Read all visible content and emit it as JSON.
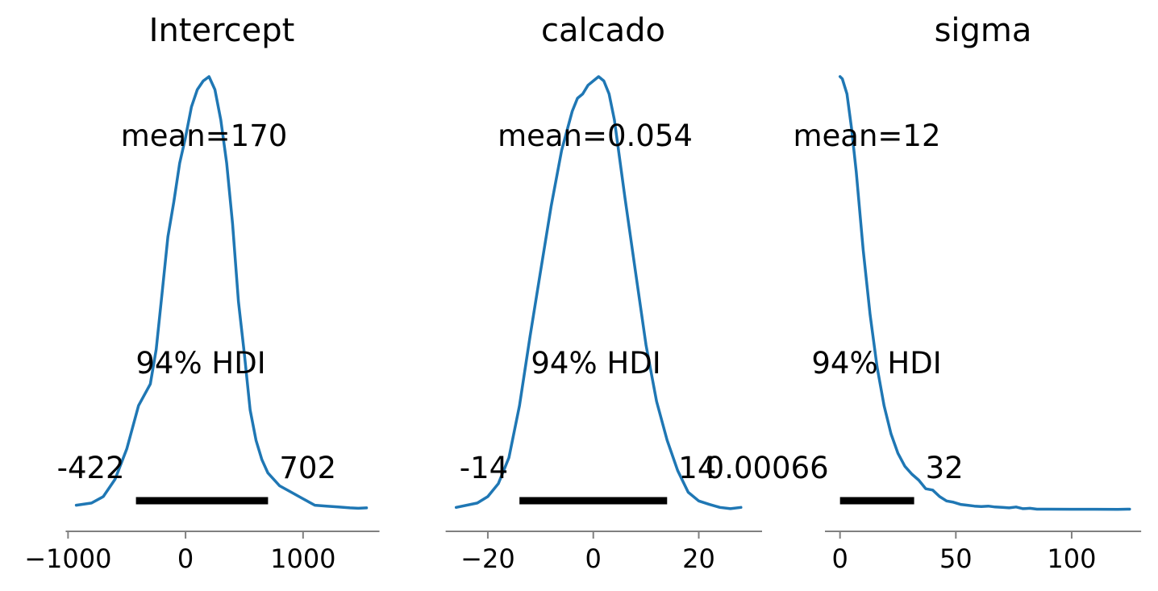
{
  "colors": {
    "line": "#1f77b4",
    "hdi_bar": "#000000",
    "axis": "#808080",
    "text": "#000000"
  },
  "chart_data": [
    {
      "type": "line",
      "title": "Intercept",
      "mean_label": "mean=170",
      "hdi_label": "94% HDI",
      "hdi": [
        -422,
        702
      ],
      "hdi_low_label": "-422",
      "hdi_high_label": "702",
      "xlim": [
        -1030,
        1660
      ],
      "xticks": [
        -1000,
        0,
        1000
      ],
      "xtick_labels": [
        "−1000",
        "0",
        "1000"
      ],
      "axis_range": [
        -1020,
        1650
      ],
      "density": {
        "x": [
          -930,
          -800,
          -700,
          -600,
          -500,
          -400,
          -300,
          -250,
          -200,
          -150,
          -100,
          -50,
          0,
          50,
          100,
          150,
          200,
          250,
          300,
          350,
          400,
          450,
          500,
          550,
          600,
          650,
          700,
          800,
          900,
          1000,
          1100,
          1200,
          1300,
          1400,
          1470,
          1540
        ],
        "y": [
          0.01,
          0.015,
          0.03,
          0.07,
          0.14,
          0.24,
          0.29,
          0.37,
          0.5,
          0.63,
          0.71,
          0.8,
          0.86,
          0.93,
          0.97,
          0.99,
          1.0,
          0.97,
          0.9,
          0.8,
          0.66,
          0.48,
          0.36,
          0.23,
          0.16,
          0.115,
          0.085,
          0.055,
          0.04,
          0.025,
          0.01,
          0.008,
          0.006,
          0.004,
          0.003,
          0.004
        ]
      }
    },
    {
      "type": "line",
      "title": "calcado",
      "mean_label": "mean=0.054",
      "hdi_label": "94% HDI",
      "hdi": [
        -14,
        14
      ],
      "hdi_low_label": "-14",
      "hdi_high_label": "14",
      "xlim": [
        -28.4,
        32
      ],
      "xticks": [
        -20,
        0,
        20
      ],
      "xtick_labels": [
        "−20",
        "0",
        "20"
      ],
      "axis_range": [
        -28,
        32
      ],
      "density": {
        "x": [
          -26,
          -22,
          -20,
          -18,
          -16,
          -14,
          -12,
          -10,
          -8,
          -6,
          -4,
          -3,
          -2,
          -1,
          0,
          1,
          2,
          3,
          4,
          6,
          8,
          10,
          12,
          14,
          16,
          18,
          20,
          22,
          24,
          26,
          28
        ],
        "y": [
          0.005,
          0.015,
          0.03,
          0.06,
          0.12,
          0.24,
          0.4,
          0.55,
          0.7,
          0.83,
          0.92,
          0.95,
          0.96,
          0.98,
          0.99,
          1.0,
          0.99,
          0.96,
          0.9,
          0.72,
          0.55,
          0.38,
          0.25,
          0.16,
          0.09,
          0.04,
          0.02,
          0.012,
          0.005,
          0.002,
          0.005
        ]
      }
    },
    {
      "type": "line",
      "title": "sigma",
      "mean_label": "mean=12",
      "hdi_label": "94% HDI",
      "hdi": [
        0.00066,
        32
      ],
      "hdi_low_label": "0.00066",
      "hdi_high_label": "32",
      "xlim": [
        -6.5,
        131
      ],
      "xticks": [
        0,
        50,
        100
      ],
      "xtick_labels": [
        "0",
        "50",
        "100"
      ],
      "axis_range": [
        -6.5,
        130
      ],
      "density": {
        "x": [
          0,
          1,
          3,
          5,
          7,
          10,
          13,
          16,
          19,
          22,
          25,
          28,
          31,
          34,
          37,
          40,
          43,
          46,
          49,
          52,
          55,
          58,
          61,
          64,
          67,
          70,
          73,
          76,
          79,
          82,
          85,
          90,
          100,
          110,
          120,
          125
        ],
        "y": [
          1.0,
          0.995,
          0.96,
          0.88,
          0.78,
          0.6,
          0.45,
          0.33,
          0.24,
          0.175,
          0.13,
          0.1,
          0.082,
          0.068,
          0.048,
          0.045,
          0.03,
          0.02,
          0.017,
          0.012,
          0.01,
          0.008,
          0.007,
          0.008,
          0.006,
          0.005,
          0.004,
          0.006,
          0.002,
          0.003,
          0.001,
          0.001,
          0.0008,
          0.0008,
          0.0005,
          0.001
        ]
      }
    }
  ]
}
